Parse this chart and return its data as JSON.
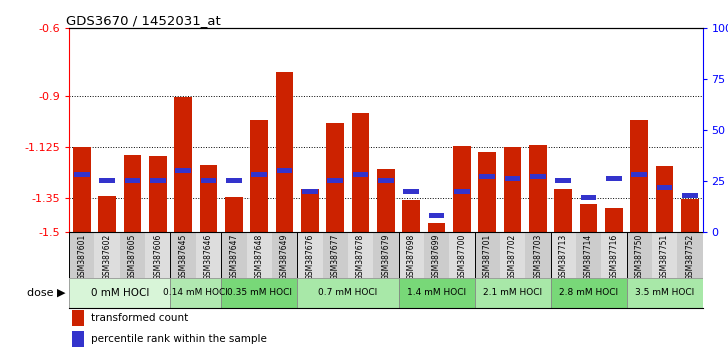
{
  "title": "GDS3670 / 1452031_at",
  "samples": [
    "GSM387601",
    "GSM387602",
    "GSM387605",
    "GSM387606",
    "GSM387645",
    "GSM387646",
    "GSM387647",
    "GSM387648",
    "GSM387649",
    "GSM387676",
    "GSM387677",
    "GSM387678",
    "GSM387679",
    "GSM387698",
    "GSM387699",
    "GSM387700",
    "GSM387701",
    "GSM387702",
    "GSM387703",
    "GSM387713",
    "GSM387714",
    "GSM387716",
    "GSM387750",
    "GSM387751",
    "GSM387752"
  ],
  "transformed_count": [
    -1.125,
    -1.34,
    -1.16,
    -1.165,
    -0.905,
    -1.205,
    -1.345,
    -1.005,
    -0.795,
    -1.31,
    -1.02,
    -0.975,
    -1.22,
    -1.36,
    -1.46,
    -1.12,
    -1.145,
    -1.125,
    -1.115,
    -1.31,
    -1.375,
    -1.395,
    -1.005,
    -1.21,
    -1.355
  ],
  "percentile_rank": [
    28,
    25,
    25,
    25,
    30,
    25,
    25,
    28,
    30,
    20,
    25,
    28,
    25,
    20,
    8,
    20,
    27,
    26,
    27,
    25,
    17,
    26,
    28,
    22,
    18
  ],
  "dose_groups": [
    {
      "label": "0 mM HOCl",
      "start": 0,
      "end": 4,
      "color": "#d8f5d8"
    },
    {
      "label": "0.14 mM HOCl",
      "start": 4,
      "end": 6,
      "color": "#b0e8b0"
    },
    {
      "label": "0.35 mM HOCl",
      "start": 6,
      "end": 9,
      "color": "#88dd88"
    },
    {
      "label": "0.7 mM HOCl",
      "start": 9,
      "end": 13,
      "color": "#b0e8b0"
    },
    {
      "label": "1.4 mM HOCl",
      "start": 13,
      "end": 16,
      "color": "#88dd88"
    },
    {
      "label": "2.1 mM HOCl",
      "start": 16,
      "end": 19,
      "color": "#b0e8b0"
    },
    {
      "label": "2.8 mM HOCl",
      "start": 19,
      "end": 22,
      "color": "#88dd88"
    },
    {
      "label": "3.5 mM HOCl",
      "start": 22,
      "end": 25,
      "color": "#b0e8b0"
    }
  ],
  "y_min": -1.5,
  "y_max": -0.6,
  "y_ticks": [
    -1.5,
    -1.35,
    -1.125,
    -0.9,
    -0.6
  ],
  "right_y_ticks": [
    0,
    25,
    50,
    75,
    100
  ],
  "right_y_labels": [
    "0",
    "25",
    "50",
    "75",
    "100%"
  ],
  "bar_color": "#cc2200",
  "percentile_color": "#3333cc",
  "background_color": "#ffffff"
}
